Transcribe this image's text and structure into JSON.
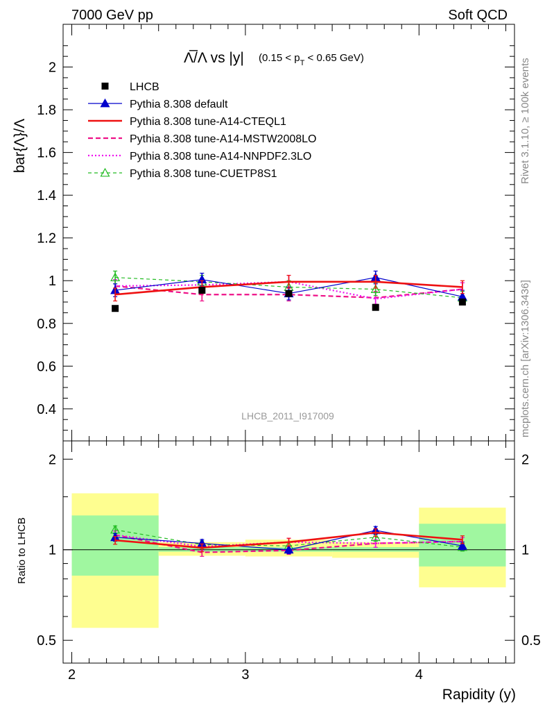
{
  "header": {
    "left": "7000 GeV pp",
    "right": "Soft QCD"
  },
  "side_labels": {
    "rivet": "Rivet 3.1.10, ≥ 100k events",
    "source": "mcplots.cern.ch [arXiv:1306.3436]"
  },
  "title": {
    "main": "Λ̅/Λ vs |y|",
    "cut": "(0.15 < p",
    "cut_sub": "T",
    "cut_end": " < 0.65 GeV)"
  },
  "analysis_id": "LHCB_2011_I917009",
  "colors": {
    "lhcb": "#000000",
    "default": "#0000cc",
    "cteql1": "#ee1111",
    "mstw": "#ee1188",
    "nnpdf": "#ee11ee",
    "cuetp": "#22bb22",
    "band_green": "#a0f7a0",
    "band_yellow": "#fefe90"
  },
  "chart_data": [
    {
      "type": "line",
      "ylabel": "bar{Λ}/Λ",
      "ylim": [
        0.25,
        2.2
      ],
      "xlim": [
        1.95,
        4.55
      ],
      "y_ticks": [
        "0.4",
        "0.6",
        "0.8",
        "1",
        "1.2",
        "1.4",
        "1.6",
        "1.8",
        "2"
      ],
      "y_tick_values": [
        0.4,
        0.6,
        0.8,
        1.0,
        1.2,
        1.4,
        1.6,
        1.8,
        2.0
      ],
      "legend_position": "top-left",
      "x": [
        2.25,
        2.75,
        3.25,
        3.75,
        4.25
      ],
      "bin_edges": [
        2.0,
        2.5,
        3.0,
        3.5,
        4.0,
        4.5
      ],
      "series": [
        {
          "name": "LHCB",
          "key": "lhcb",
          "values": [
            0.87,
            0.955,
            0.94,
            0.875,
            0.9
          ],
          "style": "points"
        },
        {
          "name": "Pythia 8.308 default",
          "key": "default",
          "values": [
            0.955,
            1.005,
            0.94,
            1.015,
            0.925
          ],
          "errors": [
            0.03,
            0.03,
            0.03,
            0.03,
            0.03
          ],
          "style": "solid-thin",
          "marker": "triangle-filled"
        },
        {
          "name": "Pythia 8.308 tune-A14-CTEQL1",
          "key": "cteql1",
          "values": [
            0.935,
            0.97,
            0.995,
            0.995,
            0.97
          ],
          "errors": [
            0.03,
            0.03,
            0.03,
            0.03,
            0.03
          ],
          "style": "solid-thick"
        },
        {
          "name": "Pythia 8.308 tune-A14-MSTW2008LO",
          "key": "mstw",
          "values": [
            0.975,
            0.935,
            0.935,
            0.92,
            0.96
          ],
          "errors": [
            0.03,
            0.03,
            0.03,
            0.03,
            0.03
          ],
          "style": "dashed"
        },
        {
          "name": "Pythia 8.308 tune-A14-NNPDF2.3LO",
          "key": "nnpdf",
          "values": [
            0.975,
            0.98,
            0.995,
            0.915,
            0.96
          ],
          "errors": [
            0.03,
            0.03,
            0.03,
            0.03,
            0.03
          ],
          "style": "dotted"
        },
        {
          "name": "Pythia 8.308 tune-CUETP8S1",
          "key": "cuetp",
          "values": [
            1.015,
            0.995,
            0.97,
            0.96,
            0.92
          ],
          "errors": [
            0.03,
            0.03,
            0.03,
            0.03,
            0.03
          ],
          "style": "dashed-thin",
          "marker": "triangle-open"
        }
      ]
    },
    {
      "type": "line",
      "ylabel": "Ratio to LHCB",
      "xlabel": "Rapidity (y)",
      "scale": "log",
      "ylim": [
        0.42,
        2.3
      ],
      "xlim": [
        1.95,
        4.55
      ],
      "x_ticks": [
        "2",
        "3",
        "4"
      ],
      "x_tick_values": [
        2,
        3,
        4
      ],
      "y_ticks": [
        "0.5",
        "1",
        "2"
      ],
      "y_tick_values": [
        0.5,
        1,
        2
      ],
      "x": [
        2.25,
        2.75,
        3.25,
        3.75,
        4.25
      ],
      "bin_edges": [
        2.0,
        2.5,
        3.0,
        3.5,
        4.0,
        4.5
      ],
      "bands": {
        "green_low": [
          0.82,
          0.985,
          0.985,
          0.985,
          0.88
        ],
        "green_high": [
          1.3,
          1.02,
          1.02,
          1.02,
          1.22
        ],
        "yellow_low": [
          0.55,
          0.955,
          0.95,
          0.94,
          0.75
        ],
        "yellow_high": [
          1.54,
          1.06,
          1.08,
          1.06,
          1.38
        ]
      },
      "series": [
        {
          "name": "Pythia 8.308 default",
          "key": "default",
          "values": [
            1.1,
            1.05,
            1.0,
            1.16,
            1.03
          ],
          "errors": [
            0.03,
            0.03,
            0.03,
            0.03,
            0.03
          ],
          "marker": "triangle-filled"
        },
        {
          "name": "Pythia 8.308 tune-A14-CTEQL1",
          "key": "cteql1",
          "values": [
            1.075,
            1.015,
            1.06,
            1.14,
            1.08
          ],
          "errors": [
            0.03,
            0.03,
            0.03,
            0.03,
            0.03
          ]
        },
        {
          "name": "Pythia 8.308 tune-A14-MSTW2008LO",
          "key": "mstw",
          "values": [
            1.12,
            0.98,
            0.995,
            1.05,
            1.065
          ],
          "errors": [
            0.03,
            0.03,
            0.03,
            0.03,
            0.03
          ]
        },
        {
          "name": "Pythia 8.308 tune-A14-NNPDF2.3LO",
          "key": "nnpdf",
          "values": [
            1.12,
            1.025,
            1.06,
            1.05,
            1.065
          ],
          "errors": [
            0.03,
            0.03,
            0.03,
            0.03,
            0.03
          ]
        },
        {
          "name": "Pythia 8.308 tune-CUETP8S1",
          "key": "cuetp",
          "values": [
            1.165,
            1.04,
            1.03,
            1.1,
            1.02
          ],
          "errors": [
            0.03,
            0.03,
            0.03,
            0.03,
            0.03
          ],
          "marker": "triangle-open"
        }
      ]
    }
  ]
}
